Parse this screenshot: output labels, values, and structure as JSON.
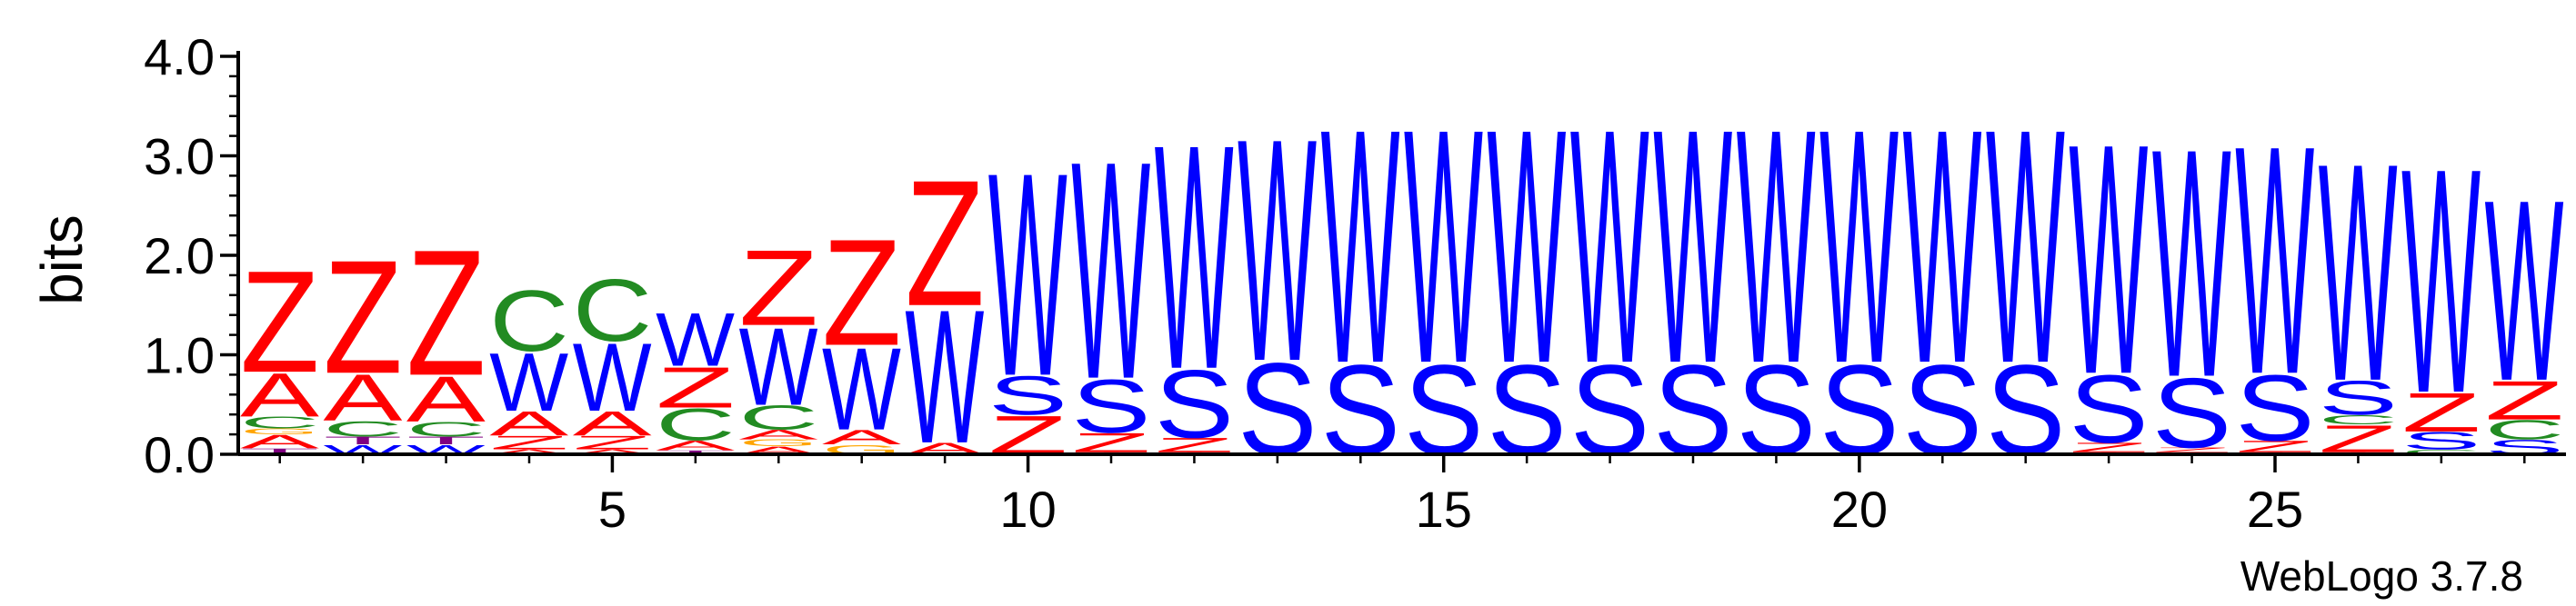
{
  "chart_data": {
    "type": "sequence-logo",
    "ylabel": "bits",
    "ylim": [
      0,
      4
    ],
    "yticks": [
      "0.0",
      "1.0",
      "2.0",
      "3.0",
      "4.0"
    ],
    "xlim": [
      0.5,
      28.5
    ],
    "xticks": [
      5,
      10,
      15,
      20,
      25
    ],
    "credit": "WebLogo 3.7.8",
    "colors": {
      "Z": "#ff0000",
      "A": "#ff0000",
      "W": "#0000ff",
      "S": "#0000ff",
      "C": "#228b22",
      "T": "#800080",
      "G": "#ffa500",
      "other": "#ff0000"
    },
    "positions": [
      {
        "pos": 1,
        "stack": [
          [
            "T",
            0.06
          ],
          [
            "A",
            0.14
          ],
          [
            "G",
            0.06
          ],
          [
            "C",
            0.12
          ],
          [
            "A",
            0.45
          ],
          [
            "Z",
            1.05
          ]
        ]
      },
      {
        "pos": 2,
        "stack": [
          [
            "W",
            0.1
          ],
          [
            "T",
            0.08
          ],
          [
            "C",
            0.16
          ],
          [
            "A",
            0.48
          ],
          [
            "Z",
            1.17
          ]
        ]
      },
      {
        "pos": 3,
        "stack": [
          [
            "W",
            0.1
          ],
          [
            "T",
            0.08
          ],
          [
            "C",
            0.15
          ],
          [
            "A",
            0.47
          ],
          [
            "Z",
            1.3
          ]
        ]
      },
      {
        "pos": 4,
        "stack": [
          [
            "A",
            0.05
          ],
          [
            "Z",
            0.14
          ],
          [
            "A",
            0.25
          ],
          [
            "W",
            0.6
          ],
          [
            "C",
            0.63
          ]
        ]
      },
      {
        "pos": 5,
        "stack": [
          [
            "A",
            0.05
          ],
          [
            "Z",
            0.14
          ],
          [
            "A",
            0.25
          ],
          [
            "W",
            0.7
          ],
          [
            "C",
            0.64
          ]
        ]
      },
      {
        "pos": 6,
        "stack": [
          [
            "T",
            0.04
          ],
          [
            "A",
            0.1
          ],
          [
            "C",
            0.33
          ],
          [
            "Z",
            0.42
          ],
          [
            "W",
            0.55
          ]
        ]
      },
      {
        "pos": 7,
        "stack": [
          [
            "A",
            0.08
          ],
          [
            "G",
            0.07
          ],
          [
            "A",
            0.1
          ],
          [
            "C",
            0.25
          ],
          [
            "W",
            0.8
          ],
          [
            "Z",
            0.78
          ]
        ]
      },
      {
        "pos": 8,
        "stack": [
          [
            "G",
            0.1
          ],
          [
            "A",
            0.15
          ],
          [
            "W",
            0.85
          ],
          [
            "Z",
            1.1
          ]
        ]
      },
      {
        "pos": 9,
        "stack": [
          [
            "A",
            0.12
          ],
          [
            "W",
            1.38
          ],
          [
            "Z",
            1.3
          ]
        ]
      },
      {
        "pos": 10,
        "stack": [
          [
            "Z",
            0.4
          ],
          [
            "S",
            0.4
          ],
          [
            "W",
            2.1
          ]
        ]
      },
      {
        "pos": 11,
        "stack": [
          [
            "A",
            0.02
          ],
          [
            "Z",
            0.2
          ],
          [
            "S",
            0.55
          ],
          [
            "W",
            2.25
          ]
        ]
      },
      {
        "pos": 12,
        "stack": [
          [
            "A",
            0.02
          ],
          [
            "Z",
            0.15
          ],
          [
            "S",
            0.7
          ],
          [
            "W",
            2.32
          ]
        ]
      },
      {
        "pos": 13,
        "stack": [
          [
            "S",
            0.95
          ],
          [
            "W",
            2.3
          ]
        ]
      },
      {
        "pos": 14,
        "stack": [
          [
            "S",
            0.93
          ],
          [
            "W",
            2.42
          ]
        ]
      },
      {
        "pos": 15,
        "stack": [
          [
            "S",
            0.93
          ],
          [
            "W",
            2.42
          ]
        ]
      },
      {
        "pos": 16,
        "stack": [
          [
            "S",
            0.93
          ],
          [
            "W",
            2.42
          ]
        ]
      },
      {
        "pos": 17,
        "stack": [
          [
            "S",
            0.93
          ],
          [
            "W",
            2.42
          ]
        ]
      },
      {
        "pos": 18,
        "stack": [
          [
            "S",
            0.93
          ],
          [
            "W",
            2.42
          ]
        ]
      },
      {
        "pos": 19,
        "stack": [
          [
            "S",
            0.93
          ],
          [
            "W",
            2.42
          ]
        ]
      },
      {
        "pos": 20,
        "stack": [
          [
            "S",
            0.93
          ],
          [
            "W",
            2.42
          ]
        ]
      },
      {
        "pos": 21,
        "stack": [
          [
            "S",
            0.93
          ],
          [
            "W",
            2.42
          ]
        ]
      },
      {
        "pos": 22,
        "stack": [
          [
            "S",
            0.93
          ],
          [
            "W",
            2.42
          ]
        ]
      },
      {
        "pos": 23,
        "stack": [
          [
            "A",
            0.02
          ],
          [
            "Z",
            0.1
          ],
          [
            "S",
            0.7
          ],
          [
            "W",
            2.38
          ]
        ]
      },
      {
        "pos": 24,
        "stack": [
          [
            "A",
            0.02
          ],
          [
            "Z",
            0.05
          ],
          [
            "S",
            0.72
          ],
          [
            "W",
            2.36
          ]
        ]
      },
      {
        "pos": 25,
        "stack": [
          [
            "A",
            0.02
          ],
          [
            "Z",
            0.12
          ],
          [
            "S",
            0.68
          ],
          [
            "W",
            2.36
          ]
        ]
      },
      {
        "pos": 26,
        "stack": [
          [
            "A",
            0.02
          ],
          [
            "Z",
            0.28
          ],
          [
            "C",
            0.1
          ],
          [
            "S",
            0.35
          ],
          [
            "W",
            2.25
          ]
        ]
      },
      {
        "pos": 27,
        "stack": [
          [
            "C",
            0.05
          ],
          [
            "S",
            0.18
          ],
          [
            "Z",
            0.4
          ],
          [
            "W",
            2.32
          ]
        ]
      },
      {
        "pos": 28,
        "stack": [
          [
            "S",
            0.15
          ],
          [
            "C",
            0.2
          ],
          [
            "Z",
            0.4
          ],
          [
            "W",
            1.87
          ]
        ]
      }
    ]
  }
}
